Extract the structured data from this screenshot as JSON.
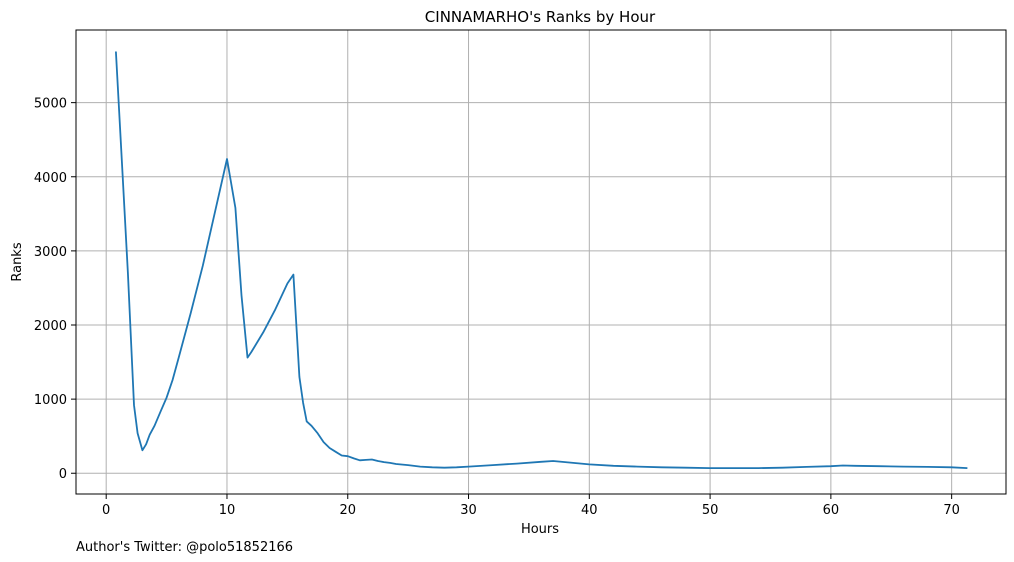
{
  "footnote": "Author's Twitter: @polo51852166",
  "chart_data": {
    "type": "line",
    "title": "CINNAMARHO's Ranks by Hour",
    "xlabel": "Hours",
    "ylabel": "Ranks",
    "xlim": [
      -2.5,
      74.5
    ],
    "ylim": [
      -280,
      5980
    ],
    "xticks": [
      0,
      10,
      20,
      30,
      40,
      50,
      60,
      70
    ],
    "yticks": [
      0,
      1000,
      2000,
      3000,
      4000,
      5000
    ],
    "grid": true,
    "line_color": "#1f77b4",
    "series": [
      {
        "x": [
          0.8,
          1.3,
          1.8,
          2.3,
          2.6,
          3.0,
          3.3,
          3.6,
          4.0,
          4.5,
          5.0,
          5.5,
          6.0,
          6.5,
          7.0,
          8.0,
          9.0,
          10.0,
          10.7,
          11.2,
          11.7,
          12.0,
          13.0,
          14.0,
          15.0,
          15.5,
          16.0,
          16.3,
          16.6,
          17.0,
          17.5,
          18.0,
          18.5,
          19.0,
          19.5,
          20.0,
          20.5,
          21.0,
          21.5,
          22.0,
          22.5,
          23.0,
          23.5,
          24.0,
          25.0,
          26.0,
          27.0,
          28.0,
          29.0,
          30.0,
          32.0,
          34.0,
          36.0,
          37.0,
          38.0,
          40.0,
          42.0,
          44.0,
          46.0,
          48.0,
          50.0,
          52.0,
          54.0,
          56.0,
          58.0,
          60.0,
          61.0,
          62.0,
          64.0,
          66.0,
          68.0,
          70.0,
          71.3
        ],
        "y": [
          5690,
          4200,
          2700,
          920,
          540,
          310,
          390,
          520,
          640,
          830,
          1020,
          1260,
          1560,
          1860,
          2160,
          2800,
          3520,
          4240,
          3580,
          2400,
          1560,
          1630,
          1900,
          2210,
          2560,
          2680,
          1300,
          950,
          700,
          640,
          540,
          420,
          340,
          290,
          240,
          230,
          200,
          175,
          180,
          185,
          165,
          150,
          140,
          125,
          110,
          90,
          80,
          75,
          80,
          90,
          110,
          130,
          155,
          165,
          150,
          120,
          100,
          90,
          80,
          75,
          70,
          70,
          70,
          75,
          85,
          95,
          105,
          100,
          95,
          90,
          85,
          80,
          70
        ]
      }
    ]
  }
}
